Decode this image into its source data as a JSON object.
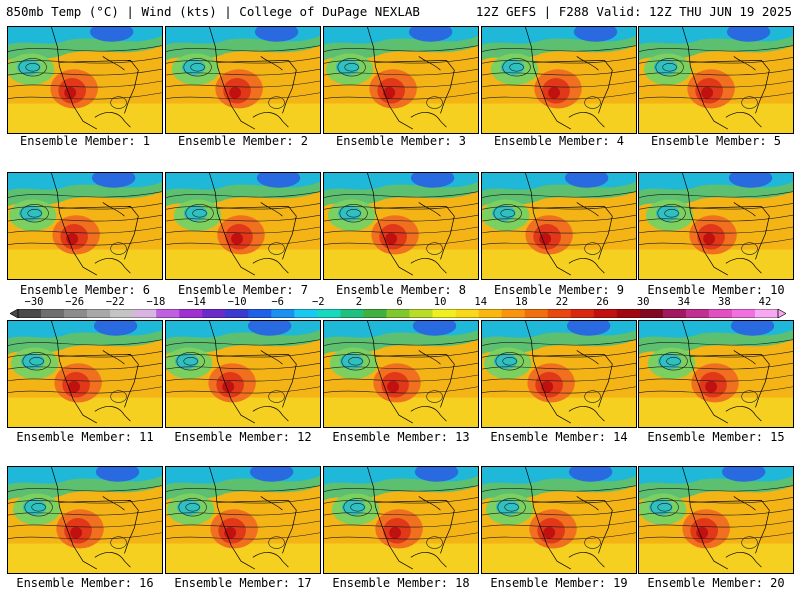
{
  "header": {
    "left_title": "850mb Temp (°C) | Wind (kts) | College of DuPage NEXLAB",
    "right_title": "12Z GEFS | F288 Valid: 12Z THU JUN 19 2025"
  },
  "members": [
    {
      "label": "Ensemble Member: 1"
    },
    {
      "label": "Ensemble Member: 2"
    },
    {
      "label": "Ensemble Member: 3"
    },
    {
      "label": "Ensemble Member: 4"
    },
    {
      "label": "Ensemble Member: 5"
    },
    {
      "label": "Ensemble Member: 6"
    },
    {
      "label": "Ensemble Member: 7"
    },
    {
      "label": "Ensemble Member: 8"
    },
    {
      "label": "Ensemble Member: 9"
    },
    {
      "label": "Ensemble Member: 10"
    },
    {
      "label": "Ensemble Member: 11"
    },
    {
      "label": "Ensemble Member: 12"
    },
    {
      "label": "Ensemble Member: 13"
    },
    {
      "label": "Ensemble Member: 14"
    },
    {
      "label": "Ensemble Member: 15"
    },
    {
      "label": "Ensemble Member: 16"
    },
    {
      "label": "Ensemble Member: 17"
    },
    {
      "label": "Ensemble Member: 18"
    },
    {
      "label": "Ensemble Member: 19"
    },
    {
      "label": "Ensemble Member: 20"
    }
  ],
  "colorbar": {
    "labels": [
      "−30",
      "−26",
      "−22",
      "−18",
      "−14",
      "−10",
      "−6",
      "−2",
      "2",
      "6",
      "10",
      "14",
      "18",
      "22",
      "26",
      "30",
      "34",
      "38",
      "42"
    ],
    "colors": [
      "#4a4a4a",
      "#6e6e6e",
      "#8c8c8c",
      "#a8a8a8",
      "#c4c4c4",
      "#d8b4e0",
      "#c060e0",
      "#a030d0",
      "#6a2cc8",
      "#3a3cd0",
      "#2060e8",
      "#1a90f0",
      "#1ac8f0",
      "#18d8c0",
      "#20c080",
      "#40b040",
      "#80c830",
      "#b8dc28",
      "#f0f020",
      "#f8d818",
      "#f8b810",
      "#f89410",
      "#f07010",
      "#e84810",
      "#d82810",
      "#c01010",
      "#a00810",
      "#800820",
      "#a01860",
      "#c03090",
      "#e050c0",
      "#f070e0",
      "#f8a8f0"
    ]
  }
}
